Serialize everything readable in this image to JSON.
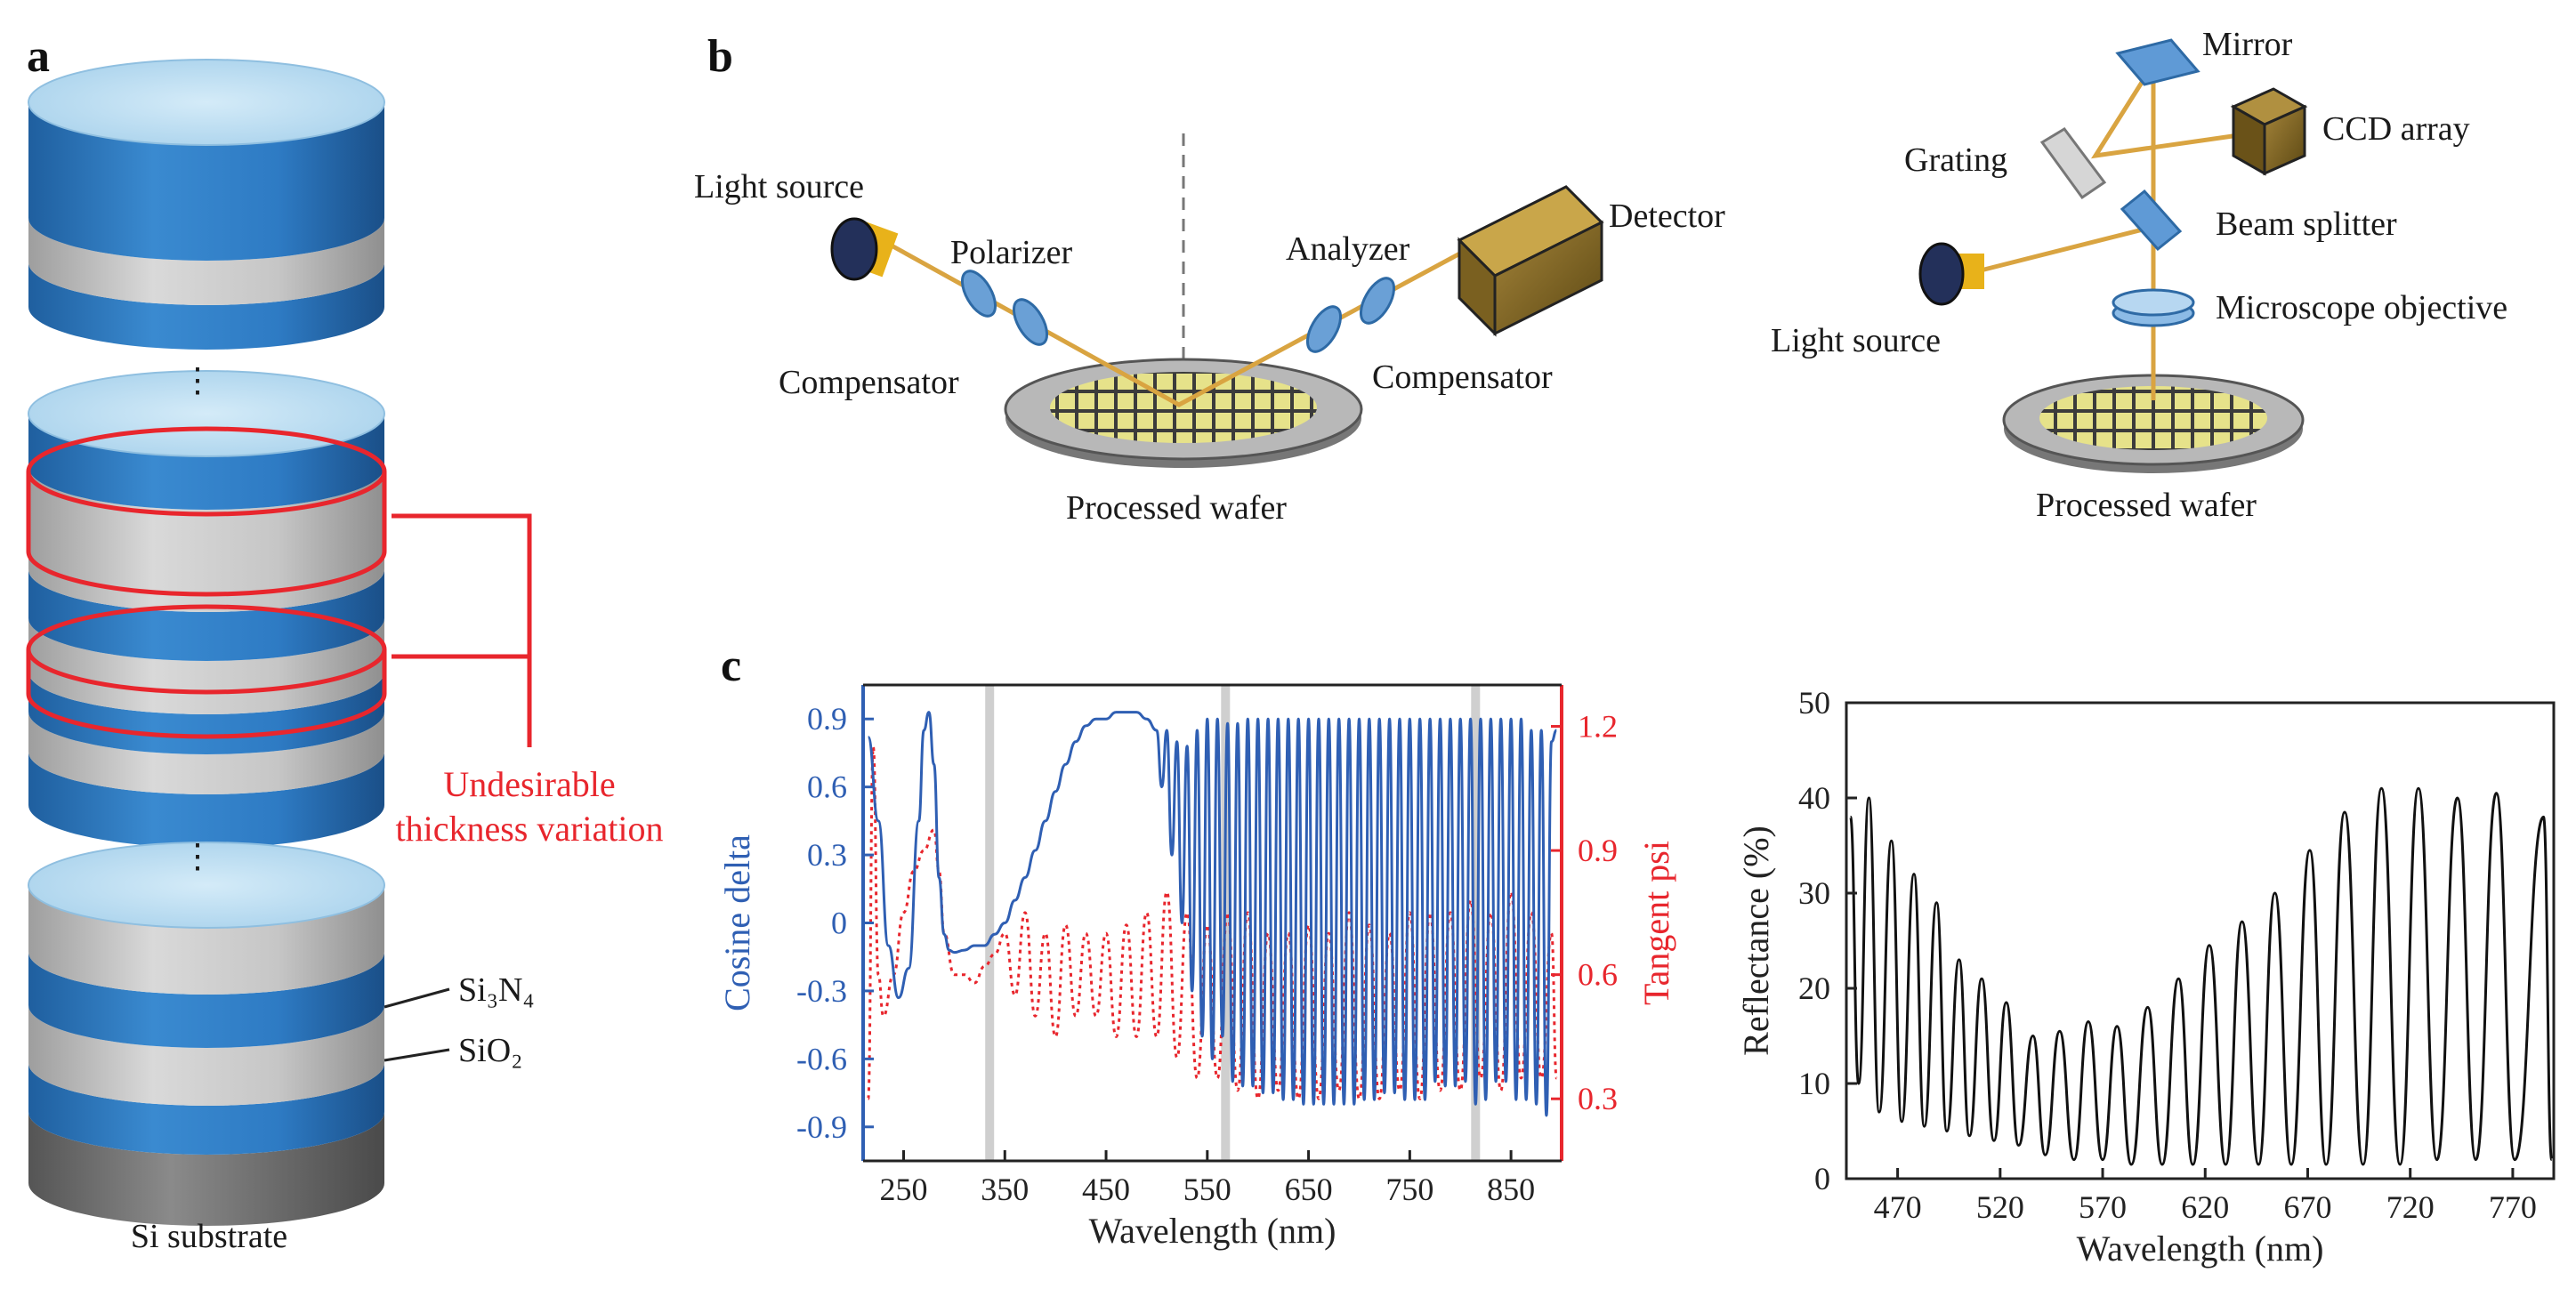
{
  "panel_a": {
    "letter": "a",
    "callout": {
      "line1": "Undesirable",
      "line2": "thickness variation"
    },
    "layer_si3n4": "Si₃N₄",
    "layer_sio2": "SiO₂",
    "substrate": "Si substrate",
    "ellipsis": "⋮",
    "colors": {
      "blue": "#2e7bc4",
      "gray": "#c6c6c6",
      "top": "#b9dbf0",
      "dark": "#7a7a7a",
      "red": "#e8262d"
    }
  },
  "panel_b_left": {
    "letter": "b",
    "light_source": "Light source",
    "polarizer": "Polarizer",
    "compensator_left": "Compensator",
    "analyzer": "Analyzer",
    "compensator_right": "Compensator",
    "detector": "Detector",
    "wafer": "Processed wafer"
  },
  "panel_b_right": {
    "mirror": "Mirror",
    "ccd": "CCD array",
    "grating": "Grating",
    "beam_splitter": "Beam splitter",
    "objective": "Microscope objective",
    "light_source": "Light source",
    "wafer": "Processed wafer"
  },
  "panel_c": {
    "letter": "c"
  },
  "chart_data": [
    {
      "type": "line",
      "title": "",
      "xlabel": "Wavelength (nm)",
      "ylabel": "Cosine delta",
      "ylabel_right": "Tangent psi",
      "xlim": [
        210,
        900
      ],
      "ylim": [
        -1.05,
        1.05
      ],
      "ylim_right": [
        0.15,
        1.3
      ],
      "x_ticks": [
        "250",
        "350",
        "450",
        "550",
        "650",
        "750",
        "850"
      ],
      "y_ticks_left": [
        "0.9",
        "0.6",
        "0.3",
        "0",
        "-0.3",
        "-0.6",
        "-0.9"
      ],
      "y_ticks_right": [
        "1.2",
        "0.9",
        "0.6",
        "0.3"
      ],
      "highlight_bands_x": [
        335,
        568,
        815
      ],
      "series": [
        {
          "name": "Cosine delta",
          "axis": "left",
          "color": "#2f5fb3",
          "style": "solid",
          "x": [
            215,
            225,
            235,
            245,
            255,
            265,
            270,
            275,
            280,
            285,
            290,
            295,
            300,
            310,
            320,
            330,
            340,
            350,
            360,
            370,
            380,
            390,
            400,
            410,
            420,
            430,
            440,
            450,
            460,
            470,
            480,
            490,
            500,
            505,
            510,
            515,
            520,
            525,
            530,
            535,
            540,
            545,
            550,
            555,
            560,
            565,
            570,
            575,
            580,
            585,
            590,
            595,
            600,
            605,
            610,
            615,
            620,
            625,
            630,
            635,
            640,
            645,
            650,
            655,
            660,
            665,
            670,
            675,
            680,
            685,
            690,
            695,
            700,
            705,
            710,
            715,
            720,
            725,
            730,
            735,
            740,
            745,
            750,
            755,
            760,
            765,
            770,
            775,
            780,
            785,
            790,
            795,
            800,
            805,
            810,
            815,
            820,
            825,
            830,
            835,
            840,
            845,
            850,
            855,
            860,
            865,
            870,
            875,
            880,
            885,
            890,
            895
          ],
          "y": [
            0.82,
            0.45,
            -0.1,
            -0.33,
            -0.2,
            0.45,
            0.85,
            0.93,
            0.7,
            0.2,
            -0.05,
            -0.12,
            -0.13,
            -0.12,
            -0.1,
            -0.1,
            -0.05,
            0.0,
            0.1,
            0.2,
            0.32,
            0.45,
            0.58,
            0.7,
            0.8,
            0.87,
            0.9,
            0.9,
            0.93,
            0.93,
            0.93,
            0.9,
            0.85,
            0.6,
            0.85,
            0.3,
            0.8,
            0.0,
            0.78,
            -0.3,
            0.85,
            -0.5,
            0.9,
            -0.6,
            0.9,
            -0.5,
            0.88,
            -0.7,
            0.88,
            -0.72,
            0.9,
            -0.72,
            0.9,
            -0.75,
            0.9,
            -0.75,
            0.9,
            -0.78,
            0.9,
            -0.78,
            0.9,
            -0.8,
            0.9,
            -0.8,
            0.9,
            -0.8,
            0.9,
            -0.8,
            0.9,
            -0.8,
            0.9,
            -0.8,
            0.9,
            -0.78,
            0.9,
            -0.78,
            0.9,
            -0.75,
            0.9,
            -0.75,
            0.9,
            -0.78,
            0.9,
            -0.78,
            0.9,
            -0.78,
            0.9,
            -0.7,
            0.9,
            -0.72,
            0.9,
            -0.72,
            0.9,
            -0.7,
            0.9,
            -0.8,
            0.9,
            -0.78,
            0.9,
            -0.7,
            0.9,
            -0.7,
            0.9,
            -0.78,
            0.9,
            -0.78,
            0.85,
            -0.8,
            0.85,
            -0.85,
            0.8,
            0.85
          ]
        },
        {
          "name": "Tangent psi",
          "axis": "right",
          "color": "#e8262d",
          "style": "dotted",
          "x": [
            215,
            220,
            225,
            230,
            240,
            250,
            260,
            270,
            280,
            285,
            290,
            300,
            310,
            320,
            330,
            340,
            350,
            360,
            370,
            380,
            390,
            400,
            410,
            420,
            430,
            440,
            450,
            460,
            470,
            480,
            490,
            500,
            510,
            520,
            530,
            540,
            550,
            560,
            570,
            580,
            590,
            600,
            610,
            620,
            630,
            640,
            650,
            660,
            670,
            680,
            690,
            700,
            710,
            720,
            730,
            740,
            750,
            760,
            770,
            780,
            790,
            800,
            810,
            820,
            830,
            840,
            850,
            860,
            870,
            880,
            890,
            895
          ],
          "y": [
            0.3,
            1.15,
            0.6,
            0.5,
            0.6,
            0.75,
            0.85,
            0.9,
            0.95,
            0.85,
            0.7,
            0.6,
            0.6,
            0.58,
            0.62,
            0.65,
            0.7,
            0.55,
            0.75,
            0.5,
            0.7,
            0.45,
            0.72,
            0.5,
            0.7,
            0.5,
            0.7,
            0.45,
            0.72,
            0.45,
            0.75,
            0.45,
            0.8,
            0.4,
            0.75,
            0.35,
            0.72,
            0.35,
            0.75,
            0.32,
            0.75,
            0.3,
            0.7,
            0.32,
            0.7,
            0.3,
            0.72,
            0.3,
            0.7,
            0.32,
            0.75,
            0.3,
            0.72,
            0.3,
            0.7,
            0.32,
            0.75,
            0.3,
            0.75,
            0.32,
            0.75,
            0.32,
            0.78,
            0.35,
            0.75,
            0.32,
            0.8,
            0.35,
            0.75,
            0.35,
            0.7,
            0.35
          ]
        }
      ]
    },
    {
      "type": "line",
      "title": "",
      "xlabel": "Wavelength (nm)",
      "ylabel": "Reflectance (%)",
      "xlim": [
        445,
        790
      ],
      "ylim": [
        0,
        50
      ],
      "x_ticks": [
        "470",
        "520",
        "570",
        "620",
        "670",
        "720",
        "770"
      ],
      "y_ticks": [
        "0",
        "10",
        "20",
        "30",
        "40",
        "50"
      ],
      "series": [
        {
          "name": "Reflectance",
          "color": "#111111",
          "peaks_x": [
            447,
            456,
            467,
            478,
            489,
            500,
            511,
            523,
            536,
            549,
            563,
            577,
            592,
            607,
            622,
            638,
            654,
            671,
            688,
            706,
            724,
            743,
            762,
            785
          ],
          "peaks_y": [
            38,
            40,
            35.5,
            32,
            29,
            23,
            21,
            18.5,
            15,
            15.5,
            16.5,
            16,
            18,
            21,
            24.5,
            27,
            30,
            34.5,
            38.5,
            41,
            41,
            40,
            40.5,
            38
          ],
          "troughs_x": [
            451,
            461,
            472,
            483,
            494,
            505,
            517,
            529,
            542,
            556,
            570,
            584,
            599,
            614,
            630,
            646,
            662,
            679,
            697,
            715,
            733,
            752,
            771,
            789
          ],
          "troughs_y": [
            10,
            7,
            6,
            5.5,
            5,
            4.5,
            4,
            3.5,
            2.5,
            2,
            2,
            1.5,
            1.5,
            1.5,
            1.5,
            1.5,
            1.5,
            1.5,
            1.5,
            1.5,
            2,
            2,
            2,
            2
          ]
        }
      ]
    }
  ]
}
